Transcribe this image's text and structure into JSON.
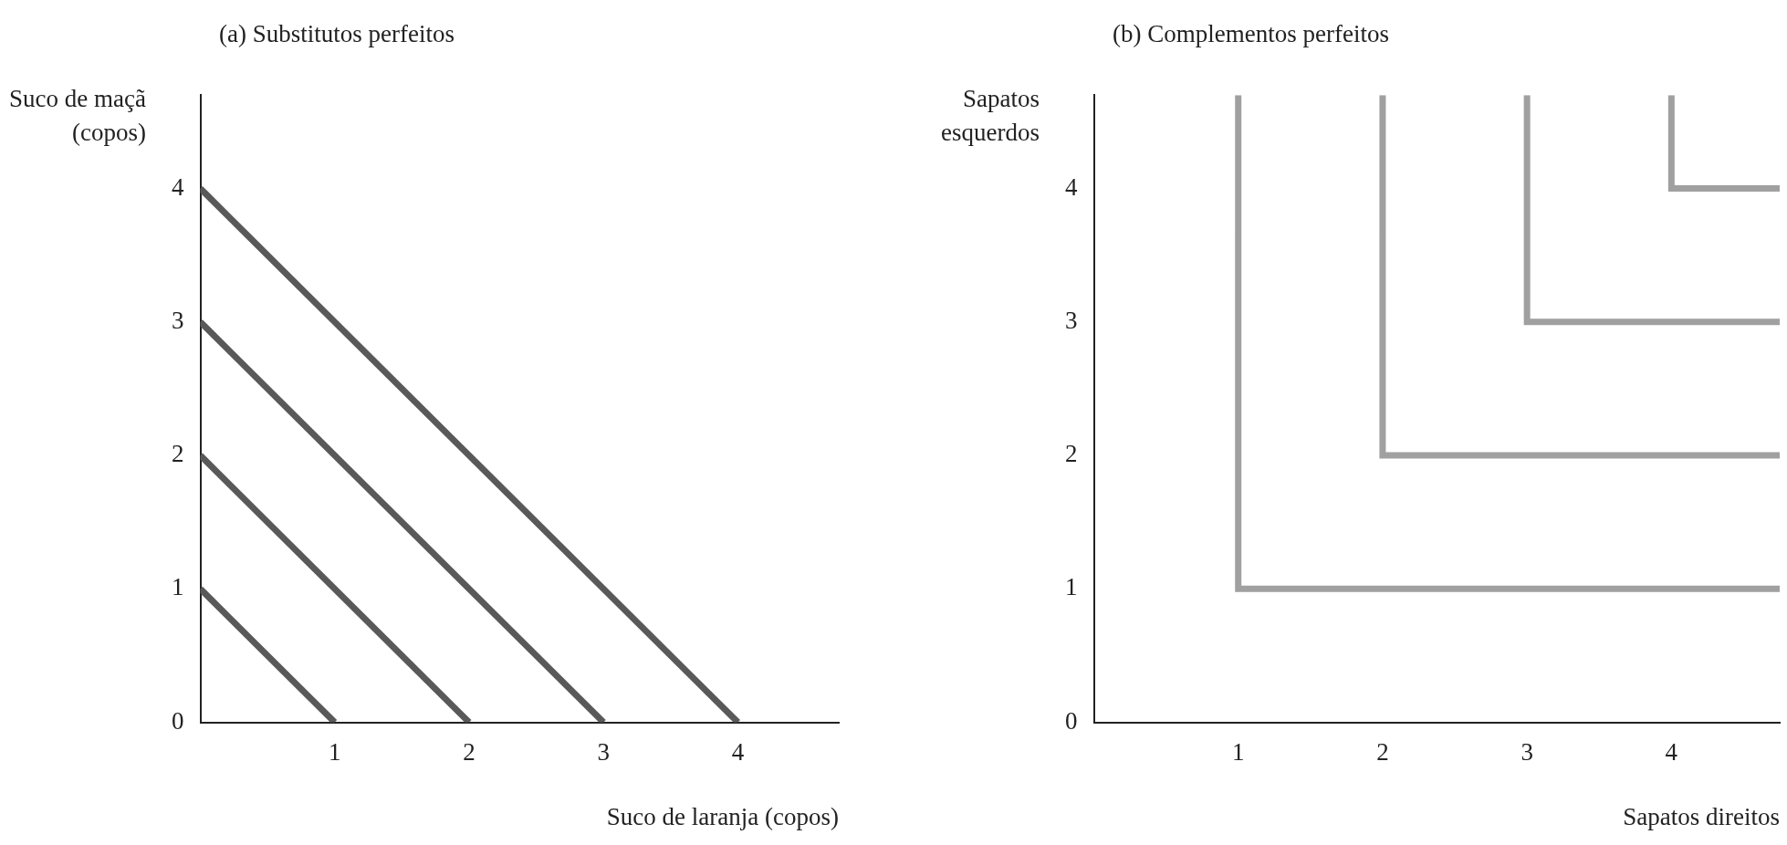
{
  "chart_data": [
    {
      "type": "line",
      "title": "(a) Substitutos perfeitos",
      "xlabel": "Suco de laranja (copos)",
      "ylabel": "Suco de maçã (copos)",
      "xlim": [
        0,
        4.75
      ],
      "ylim": [
        0,
        4.7
      ],
      "xticks": [
        1,
        2,
        3,
        4
      ],
      "yticks": [
        0,
        1,
        2,
        3,
        4
      ],
      "line_style": "solid",
      "series": [
        {
          "color": "#595959",
          "x": [
            0,
            1
          ],
          "values": [
            1,
            0
          ]
        },
        {
          "color": "#595959",
          "x": [
            0,
            2
          ],
          "values": [
            2,
            0
          ]
        },
        {
          "color": "#595959",
          "x": [
            0,
            3
          ],
          "values": [
            3,
            0
          ]
        },
        {
          "color": "#595959",
          "x": [
            0,
            4
          ],
          "values": [
            4,
            0
          ]
        }
      ]
    },
    {
      "type": "line",
      "title": "(b) Complementos perfeitos",
      "xlabel": "Sapatos direitos",
      "ylabel": "Sapatos esquerdos",
      "xlim": [
        0,
        4.75
      ],
      "ylim": [
        0,
        4.7
      ],
      "xticks": [
        1,
        2,
        3,
        4
      ],
      "yticks": [
        0,
        1,
        2,
        3,
        4
      ],
      "line_style": "solid",
      "series": [
        {
          "color": "#a0a0a0",
          "x": [
            1,
            1,
            4.75
          ],
          "values": [
            4.7,
            1,
            1
          ]
        },
        {
          "color": "#a0a0a0",
          "x": [
            2,
            2,
            4.75
          ],
          "values": [
            4.7,
            2,
            2
          ]
        },
        {
          "color": "#a0a0a0",
          "x": [
            3,
            3,
            4.75
          ],
          "values": [
            4.7,
            3,
            3
          ]
        },
        {
          "color": "#a0a0a0",
          "x": [
            4,
            4,
            4.75
          ],
          "values": [
            4.7,
            4,
            4
          ]
        }
      ]
    }
  ]
}
